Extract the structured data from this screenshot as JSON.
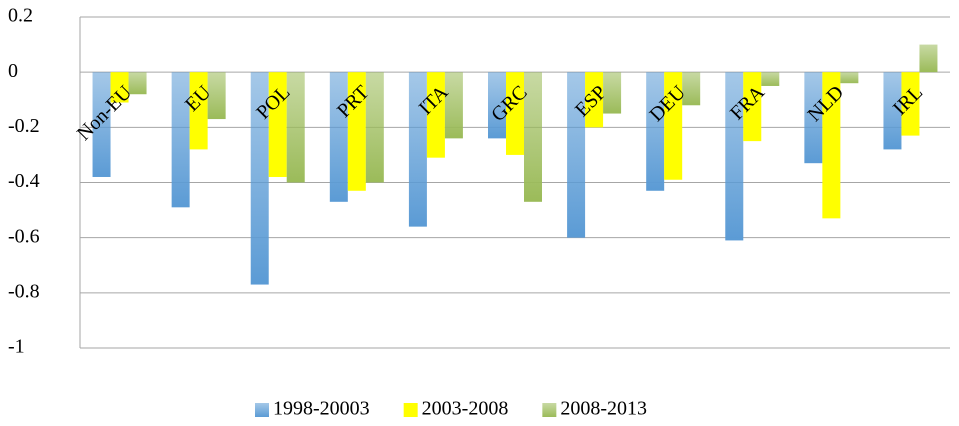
{
  "chart_data": {
    "type": "bar",
    "categories": [
      "Non-EU",
      "EU",
      "POL",
      "PRT",
      "ITA",
      "GRC",
      "ESP",
      "DEU",
      "FRA",
      "NLD",
      "IRL"
    ],
    "series": [
      {
        "name": "1998-20003",
        "color": "#5b9bd5",
        "values": [
          -0.38,
          -0.49,
          -0.77,
          -0.47,
          -0.56,
          -0.24,
          -0.6,
          -0.43,
          -0.61,
          -0.33,
          -0.28
        ]
      },
      {
        "name": "2003-2008",
        "color": "#ffff00",
        "values": [
          -0.11,
          -0.28,
          -0.38,
          -0.43,
          -0.31,
          -0.3,
          -0.2,
          -0.39,
          -0.25,
          -0.53,
          -0.23
        ]
      },
      {
        "name": "2008-2013",
        "color": "#9bbb59",
        "values": [
          -0.08,
          -0.17,
          -0.4,
          -0.4,
          -0.24,
          -0.47,
          -0.15,
          -0.12,
          -0.05,
          -0.04,
          0.1
        ]
      }
    ],
    "ylim": [
      -1,
      0.2
    ],
    "yticks": [
      -1,
      -0.8,
      -0.6,
      -0.4,
      -0.2,
      0,
      0.2
    ],
    "grid": true,
    "legend": "bottom"
  }
}
